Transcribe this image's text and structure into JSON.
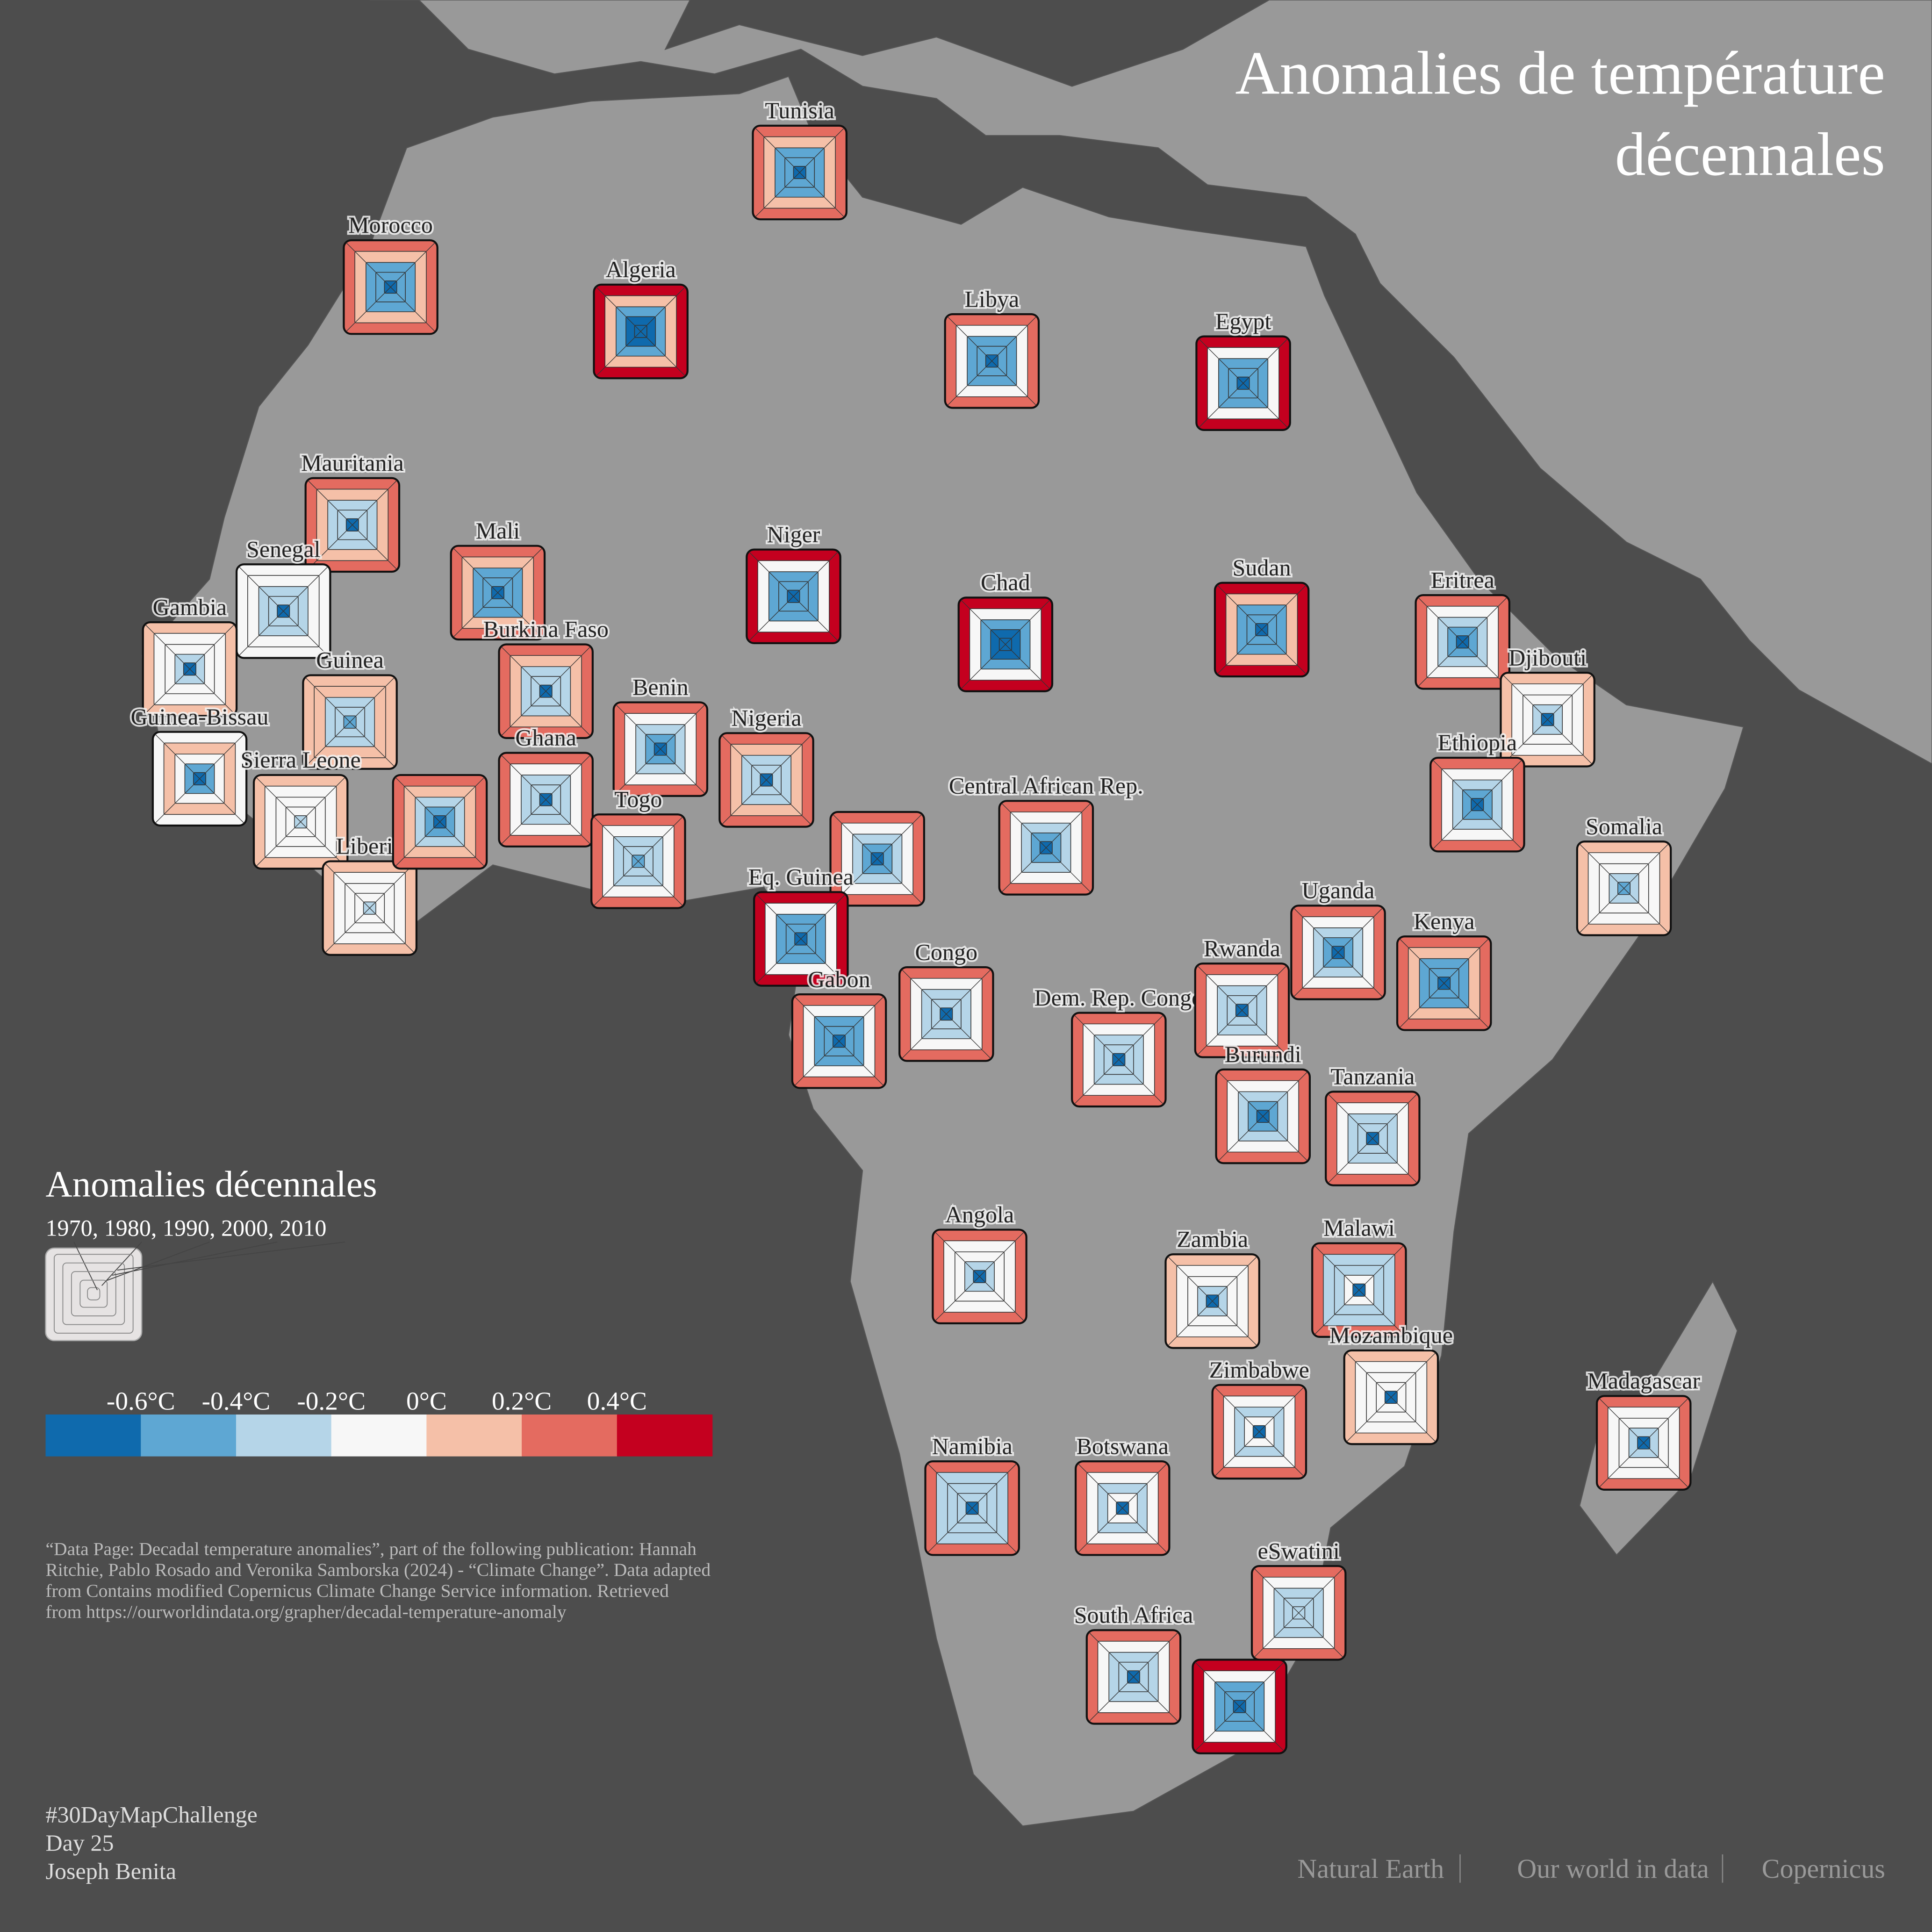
{
  "chart_data": {
    "type": "square-glyph",
    "title_lines": [
      "Anomalies de température",
      "décennales"
    ],
    "legend": {
      "title": "Anomalies décennales",
      "decades_label": "1970, 1980, 1990, 2000, 2010"
    },
    "colorscale": {
      "ticks": [
        {
          "value": -0.6,
          "label": "-0.6°C"
        },
        {
          "value": -0.4,
          "label": "-0.4°C"
        },
        {
          "value": -0.2,
          "label": "-0.2°C"
        },
        {
          "value": 0,
          "label": "0°C"
        },
        {
          "value": 0.2,
          "label": "0.2°C"
        },
        {
          "value": 0.4,
          "label": "0.4°C"
        }
      ],
      "colors": [
        "#0f6aad",
        "#5ea7d3",
        "#b5d5e8",
        "#f7f7f7",
        "#f5c0a8",
        "#e46b60",
        "#c4001f"
      ]
    },
    "countries": [
      {
        "name": "Tunisia",
        "values": [
          -0.7,
          -0.5,
          -0.5,
          0.1,
          0.3
        ]
      },
      {
        "name": "Morocco",
        "values": [
          -0.7,
          -0.5,
          -0.5,
          0.1,
          0.3
        ]
      },
      {
        "name": "Algeria",
        "values": [
          -0.7,
          -0.7,
          -0.5,
          0.1,
          0.5
        ]
      },
      {
        "name": "Libya",
        "values": [
          -0.7,
          -0.5,
          -0.5,
          -0.1,
          0.3
        ]
      },
      {
        "name": "Egypt",
        "values": [
          -0.7,
          -0.5,
          -0.5,
          -0.1,
          0.5
        ]
      },
      {
        "name": "Mauritania",
        "values": [
          -0.7,
          -0.3,
          -0.3,
          0.1,
          0.3
        ]
      },
      {
        "name": "Mali",
        "values": [
          -0.7,
          -0.5,
          -0.5,
          0.1,
          0.3
        ]
      },
      {
        "name": "Niger",
        "values": [
          -0.7,
          -0.5,
          -0.5,
          -0.1,
          0.5
        ]
      },
      {
        "name": "Chad",
        "values": [
          -0.7,
          -0.7,
          -0.5,
          -0.1,
          0.5
        ]
      },
      {
        "name": "Sudan",
        "values": [
          -0.7,
          -0.5,
          -0.5,
          0.1,
          0.5
        ]
      },
      {
        "name": "Eritrea",
        "values": [
          -0.7,
          -0.5,
          -0.3,
          -0.1,
          0.3
        ]
      },
      {
        "name": "Djibouti",
        "values": [
          -0.7,
          -0.3,
          -0.1,
          -0.1,
          0.1
        ]
      },
      {
        "name": "Ethiopia",
        "values": [
          -0.7,
          -0.5,
          -0.3,
          -0.1,
          0.3
        ]
      },
      {
        "name": "Somalia",
        "values": [
          -0.5,
          -0.3,
          -0.1,
          -0.1,
          0.1
        ]
      },
      {
        "name": "Senegal",
        "values": [
          -0.7,
          -0.3,
          -0.3,
          -0.1,
          -0.1
        ]
      },
      {
        "name": "Gambia",
        "values": [
          -0.7,
          -0.3,
          -0.1,
          -0.1,
          0.1
        ]
      },
      {
        "name": "Guinea",
        "values": [
          -0.5,
          -0.3,
          -0.3,
          0.1,
          0.1
        ]
      },
      {
        "name": "Guinea-Bissau",
        "values": [
          -0.7,
          -0.5,
          -0.1,
          0.1,
          -0.1
        ]
      },
      {
        "name": "Sierra Leone",
        "values": [
          -0.3,
          -0.1,
          -0.1,
          -0.1,
          0.1
        ]
      },
      {
        "name": "Liberia",
        "values": [
          -0.3,
          -0.1,
          -0.1,
          -0.1,
          0.1
        ]
      },
      {
        "name": "Burkina Faso",
        "values": [
          -0.7,
          -0.3,
          -0.3,
          0.1,
          0.3
        ]
      },
      {
        "name": "Ghana",
        "values": [
          -0.7,
          -0.3,
          -0.3,
          -0.1,
          0.3
        ]
      },
      {
        "name": null,
        "values": [
          -0.7,
          -0.5,
          -0.3,
          0.1,
          0.3
        ]
      },
      {
        "name": "Benin",
        "values": [
          -0.7,
          -0.5,
          -0.3,
          -0.1,
          0.3
        ]
      },
      {
        "name": "Togo",
        "values": [
          -0.5,
          -0.3,
          -0.3,
          -0.1,
          0.3
        ]
      },
      {
        "name": "Nigeria",
        "values": [
          -0.7,
          -0.3,
          -0.3,
          0.1,
          0.3
        ]
      },
      {
        "name": null,
        "values": [
          -0.7,
          -0.5,
          -0.3,
          -0.1,
          0.3
        ]
      },
      {
        "name": "Central African Rep.",
        "values": [
          -0.7,
          -0.5,
          -0.3,
          -0.1,
          0.3
        ]
      },
      {
        "name": "Eq. Guinea",
        "values": [
          -0.7,
          -0.5,
          -0.5,
          -0.1,
          0.5
        ]
      },
      {
        "name": "Gabon",
        "values": [
          -0.7,
          -0.5,
          -0.5,
          -0.1,
          0.3
        ]
      },
      {
        "name": "Congo",
        "values": [
          -0.7,
          -0.3,
          -0.3,
          -0.1,
          0.3
        ]
      },
      {
        "name": "Dem. Rep. Congo",
        "values": [
          -0.7,
          -0.3,
          -0.3,
          -0.1,
          0.3
        ]
      },
      {
        "name": "Rwanda",
        "values": [
          -0.7,
          -0.3,
          -0.3,
          -0.1,
          0.3
        ]
      },
      {
        "name": "Uganda",
        "values": [
          -0.7,
          -0.5,
          -0.3,
          -0.1,
          0.3
        ]
      },
      {
        "name": "Kenya",
        "values": [
          -0.7,
          -0.5,
          -0.5,
          0.1,
          0.3
        ]
      },
      {
        "name": "Burundi",
        "values": [
          -0.7,
          -0.5,
          -0.3,
          -0.1,
          0.3
        ]
      },
      {
        "name": "Tanzania",
        "values": [
          -0.7,
          -0.3,
          -0.3,
          -0.1,
          0.3
        ]
      },
      {
        "name": "Angola",
        "values": [
          -0.7,
          -0.3,
          -0.1,
          -0.1,
          0.3
        ]
      },
      {
        "name": "Zambia",
        "values": [
          -0.7,
          -0.3,
          -0.1,
          -0.1,
          0.1
        ]
      },
      {
        "name": "Malawi",
        "values": [
          -0.7,
          -0.1,
          -0.3,
          -0.3,
          0.3
        ]
      },
      {
        "name": "Mozambique",
        "values": [
          -0.7,
          -0.1,
          -0.1,
          -0.1,
          0.1
        ]
      },
      {
        "name": "Madagascar",
        "values": [
          -0.7,
          -0.3,
          -0.1,
          -0.1,
          0.3
        ]
      },
      {
        "name": "Zimbabwe",
        "values": [
          -0.7,
          -0.1,
          -0.3,
          -0.1,
          0.3
        ]
      },
      {
        "name": "Namibia",
        "values": [
          -0.7,
          -0.3,
          -0.3,
          -0.3,
          0.3
        ]
      },
      {
        "name": "Botswana",
        "values": [
          -0.7,
          -0.1,
          -0.3,
          -0.1,
          0.3
        ]
      },
      {
        "name": "eSwatini",
        "values": [
          -0.3,
          -0.3,
          -0.3,
          -0.1,
          0.3
        ]
      },
      {
        "name": "South Africa",
        "values": [
          -0.7,
          -0.3,
          -0.3,
          -0.1,
          0.3
        ]
      },
      {
        "name": null,
        "values": [
          -0.7,
          -0.5,
          -0.5,
          -0.1,
          0.5
        ]
      }
    ],
    "source_lines": [
      "“Data Page: Decadal temperature anomalies”, part of the following publication: Hannah",
      "Ritchie, Pablo Rosado and Veronika Samborska (2024) - “Climate Change”. Data adapted",
      "from Contains modified Copernicus Climate Change Service information. Retrieved",
      "from https://ourworldindata.org/grapher/decadal-temperature-anomaly"
    ],
    "credit_lines": [
      "#30DayMapChallenge",
      "Day 25",
      "Joseph Benita"
    ],
    "providers": [
      "Natural Earth",
      "Our world in data",
      "Copernicus"
    ]
  }
}
